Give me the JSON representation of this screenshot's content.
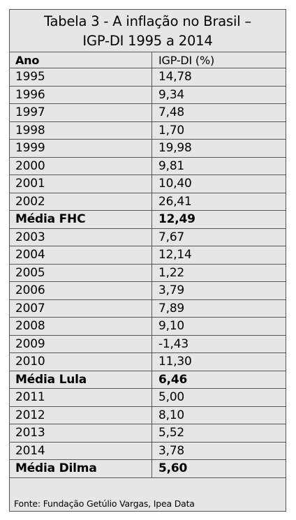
{
  "table": {
    "title_line1": "Tabela 3 - A inflação no Brasil –",
    "title_line2": "IGP-DI 1995 a 2014",
    "col_year": "Ano",
    "col_value": "IGP-DI (%)",
    "rows": [
      {
        "year": "1995",
        "value": "14,78"
      },
      {
        "year": "1996",
        "value": "9,34"
      },
      {
        "year": "1997",
        "value": "7,48"
      },
      {
        "year": "1998",
        "value": "1,70"
      },
      {
        "year": "1999",
        "value": "19,98"
      },
      {
        "year": "2000",
        "value": "9,81"
      },
      {
        "year": "2001",
        "value": "10,40"
      },
      {
        "year": "2002",
        "value": "26,41"
      },
      {
        "year": "Média FHC",
        "value": "12,49",
        "bold": true
      },
      {
        "year": "2003",
        "value": "7,67"
      },
      {
        "year": "2004",
        "value": "12,14"
      },
      {
        "year": "2005",
        "value": "1,22"
      },
      {
        "year": "2006",
        "value": "3,79"
      },
      {
        "year": "2007",
        "value": "7,89"
      },
      {
        "year": "2008",
        "value": "9,10"
      },
      {
        "year": "2009",
        "value": "-1,43"
      },
      {
        "year": "2010",
        "value": "11,30"
      },
      {
        "year": "Média Lula",
        "value": "6,46",
        "bold": true
      },
      {
        "year": "2011",
        "value": "5,00"
      },
      {
        "year": "2012",
        "value": "8,10"
      },
      {
        "year": "2013",
        "value": "5,52"
      },
      {
        "year": "2014",
        "value": "3,78"
      },
      {
        "year": "Média Dilma",
        "value": "5,60",
        "bold": true
      }
    ],
    "source": "Fonte: Fundação Getúlio Vargas, Ipea Data"
  }
}
